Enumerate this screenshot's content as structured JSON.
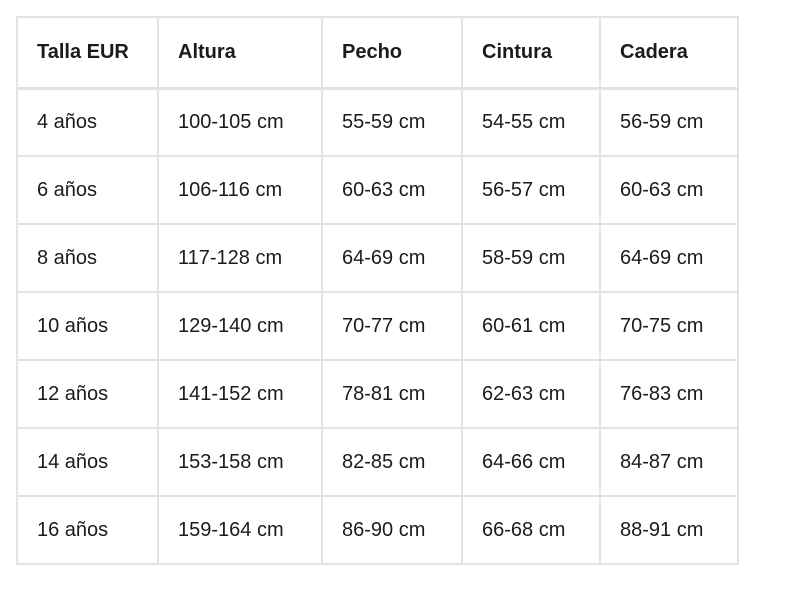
{
  "headers": [
    "Talla EUR",
    "Altura",
    "Pecho",
    "Cintura",
    "Cadera"
  ],
  "rows": [
    [
      "4 años",
      "100-105 cm",
      "55-59 cm",
      "54-55 cm",
      "56-59 cm"
    ],
    [
      "6 años",
      "106-116 cm",
      "60-63 cm",
      "56-57 cm",
      "60-63 cm"
    ],
    [
      "8 años",
      "117-128 cm",
      "64-69 cm",
      "58-59 cm",
      "64-69 cm"
    ],
    [
      "10 años",
      "129-140 cm",
      "70-77 cm",
      "60-61 cm",
      "70-75 cm"
    ],
    [
      "12 años",
      "141-152 cm",
      "78-81 cm",
      "62-63 cm",
      "76-83 cm"
    ],
    [
      "14 años",
      "153-158 cm",
      "82-85 cm",
      "64-66 cm",
      "84-87 cm"
    ],
    [
      "16 años",
      "159-164 cm",
      "86-90 cm",
      "66-68 cm",
      "88-91 cm"
    ]
  ]
}
